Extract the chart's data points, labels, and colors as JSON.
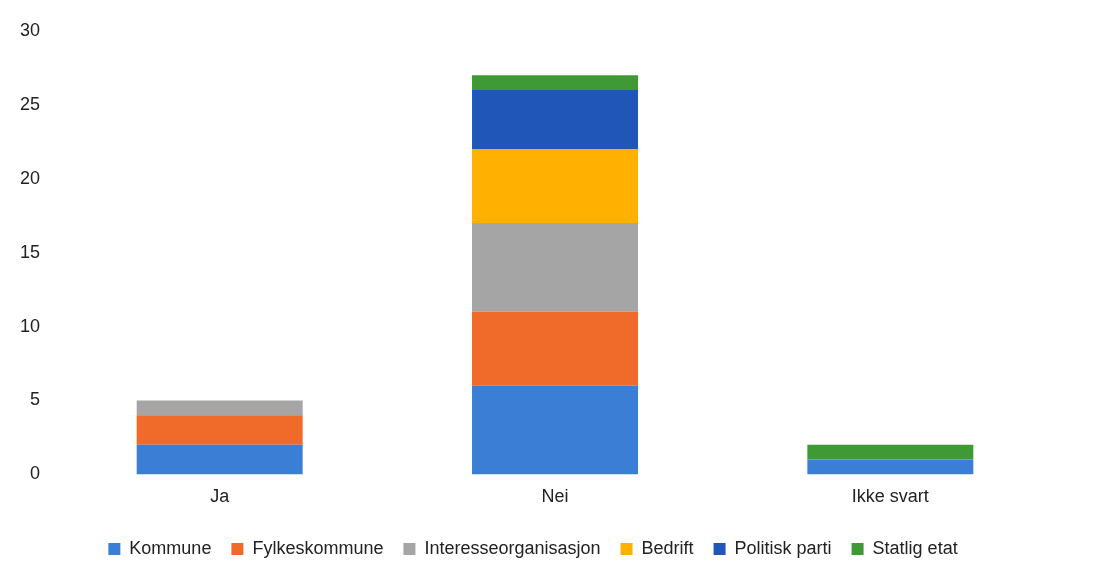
{
  "chart_data": {
    "type": "bar",
    "stacked": true,
    "categories": [
      "Ja",
      "Nei",
      "Ikke svart"
    ],
    "series": [
      {
        "name": "Kommune",
        "color": "#3a7fd5",
        "values": [
          2,
          6,
          1
        ]
      },
      {
        "name": "Fylkeskommune",
        "color": "#f06a2a",
        "values": [
          2,
          5,
          0
        ]
      },
      {
        "name": "Interesseorganisasjon",
        "color": "#a5a5a5",
        "values": [
          1,
          6,
          0
        ]
      },
      {
        "name": "Bedrift",
        "color": "#ffb000",
        "values": [
          0,
          5,
          0
        ]
      },
      {
        "name": "Politisk parti",
        "color": "#1f56b8",
        "values": [
          0,
          4,
          0
        ]
      },
      {
        "name": "Statlig etat",
        "color": "#3f9a35",
        "values": [
          0,
          1,
          1
        ]
      }
    ],
    "ylim": [
      0,
      30
    ],
    "yticks": [
      0,
      5,
      10,
      15,
      20,
      25,
      30
    ],
    "grid": false,
    "legend": "bottom"
  }
}
